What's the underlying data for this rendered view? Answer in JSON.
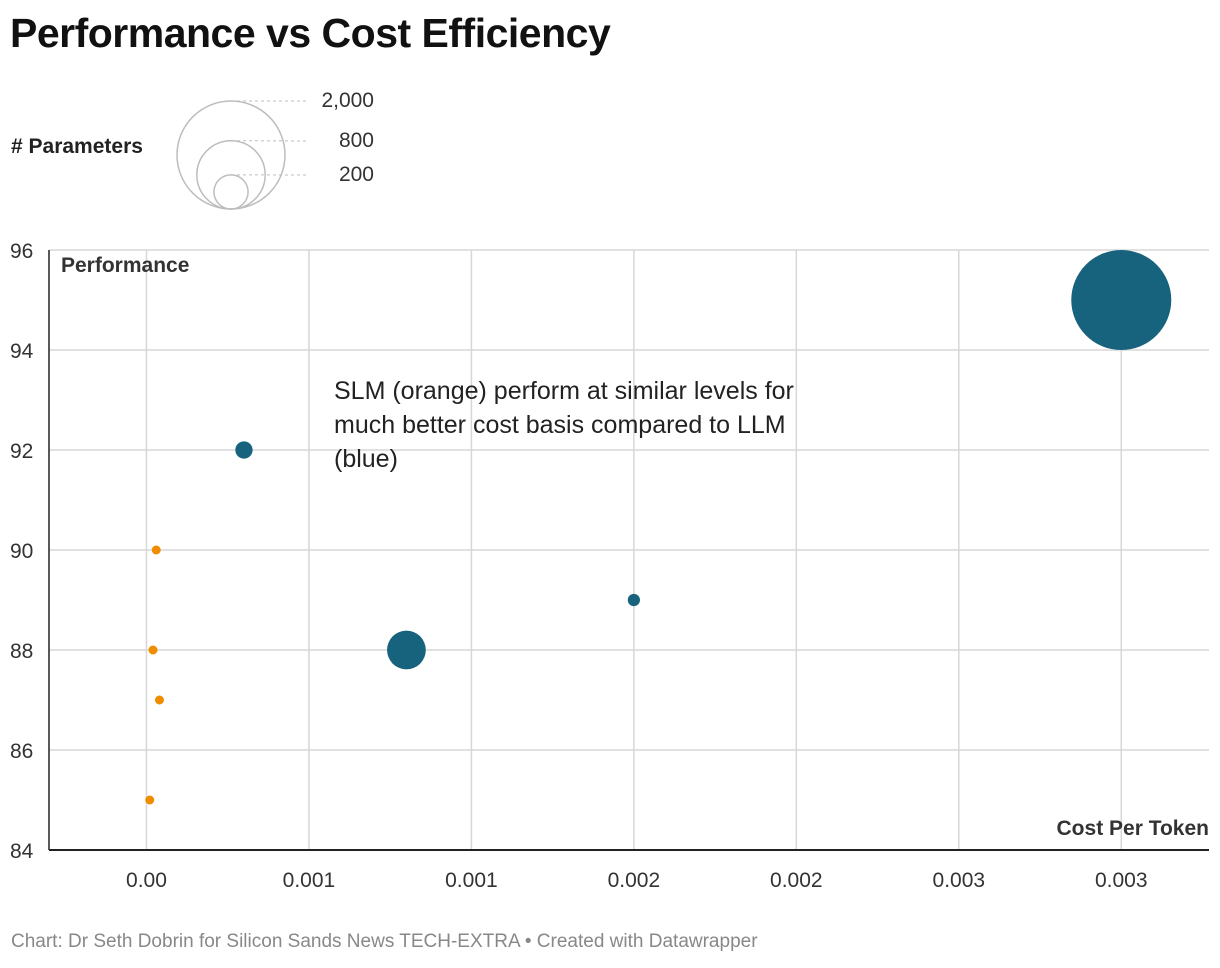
{
  "title": "Performance vs Cost Efficiency",
  "size_legend": {
    "title": "# Parameters",
    "values": [
      "2,000",
      "800",
      "200"
    ]
  },
  "annotation": "SLM (orange) perform at similar levels for much better cost basis compared to LLM (blue)",
  "footer": "Chart: Dr Seth Dobrin for Silicon Sands News TECH-EXTRA • Created with Datawrapper",
  "colors": {
    "llm": "#17637e",
    "slm": "#f08c00",
    "grid": "#d7d7d7",
    "axis": "#222222"
  },
  "chart_data": {
    "type": "scatter",
    "title": "Performance vs Cost Efficiency",
    "xlabel": "Cost Per Token",
    "ylabel": "Performance",
    "xlim": [
      -0.0003,
      0.00327
    ],
    "ylim": [
      84,
      96
    ],
    "x_ticks": [
      0.0,
      0.0005,
      0.001,
      0.0015,
      0.002,
      0.0025,
      0.003
    ],
    "x_tick_labels": [
      "0.00",
      "0.001",
      "0.001",
      "0.002",
      "0.002",
      "0.003",
      "0.003"
    ],
    "y_ticks": [
      84,
      86,
      88,
      90,
      92,
      94,
      96
    ],
    "y_tick_labels": [
      "84",
      "86",
      "88",
      "90",
      "92",
      "94",
      "96"
    ],
    "grid": true,
    "size_encoding": "# Parameters",
    "series": [
      {
        "color": "#17637e",
        "points": [
          {
            "x": 0.003,
            "y": 95,
            "size": 2000
          },
          {
            "x": 0.0003,
            "y": 92,
            "size": 60
          },
          {
            "x": 0.0008,
            "y": 88,
            "size": 300
          },
          {
            "x": 0.0015,
            "y": 89,
            "size": 30
          }
        ]
      },
      {
        "color": "#f08c00",
        "points": [
          {
            "x": 3e-05,
            "y": 90,
            "size": 7
          },
          {
            "x": 2e-05,
            "y": 88,
            "size": 7
          },
          {
            "x": 4e-05,
            "y": 87,
            "size": 7
          },
          {
            "x": 1e-05,
            "y": 85,
            "size": 7
          }
        ]
      }
    ]
  }
}
